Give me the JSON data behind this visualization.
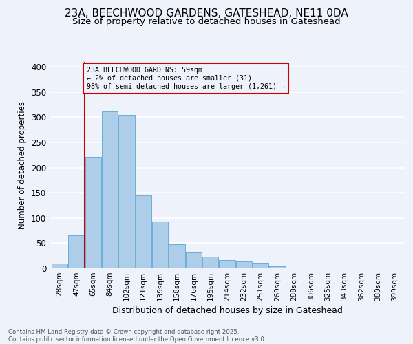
{
  "title1": "23A, BEECHWOOD GARDENS, GATESHEAD, NE11 0DA",
  "title2": "Size of property relative to detached houses in Gateshead",
  "xlabel": "Distribution of detached houses by size in Gateshead",
  "ylabel": "Number of detached properties",
  "bar_labels": [
    "28sqm",
    "47sqm",
    "65sqm",
    "84sqm",
    "102sqm",
    "121sqm",
    "139sqm",
    "158sqm",
    "176sqm",
    "195sqm",
    "214sqm",
    "232sqm",
    "251sqm",
    "269sqm",
    "288sqm",
    "306sqm",
    "325sqm",
    "343sqm",
    "362sqm",
    "380sqm",
    "399sqm"
  ],
  "bar_values": [
    9,
    65,
    222,
    311,
    305,
    145,
    93,
    48,
    31,
    23,
    16,
    13,
    11,
    4,
    2,
    2,
    1,
    1,
    1,
    1,
    1
  ],
  "bar_color": "#aecde8",
  "bar_edge_color": "#6aaed6",
  "vline_color": "#cc0000",
  "annotation_box_text": "23A BEECHWOOD GARDENS: 59sqm\n← 2% of detached houses are smaller (31)\n98% of semi-detached houses are larger (1,261) →",
  "box_edge_color": "#cc0000",
  "ylim": [
    0,
    410
  ],
  "yticks": [
    0,
    50,
    100,
    150,
    200,
    250,
    300,
    350,
    400
  ],
  "footnote1": "Contains HM Land Registry data © Crown copyright and database right 2025.",
  "footnote2": "Contains public sector information licensed under the Open Government Licence v3.0.",
  "background_color": "#eef2fb",
  "plot_bg_color": "#eef2fb",
  "grid_color": "#ffffff",
  "title_fontsize": 11,
  "subtitle_fontsize": 9.5
}
